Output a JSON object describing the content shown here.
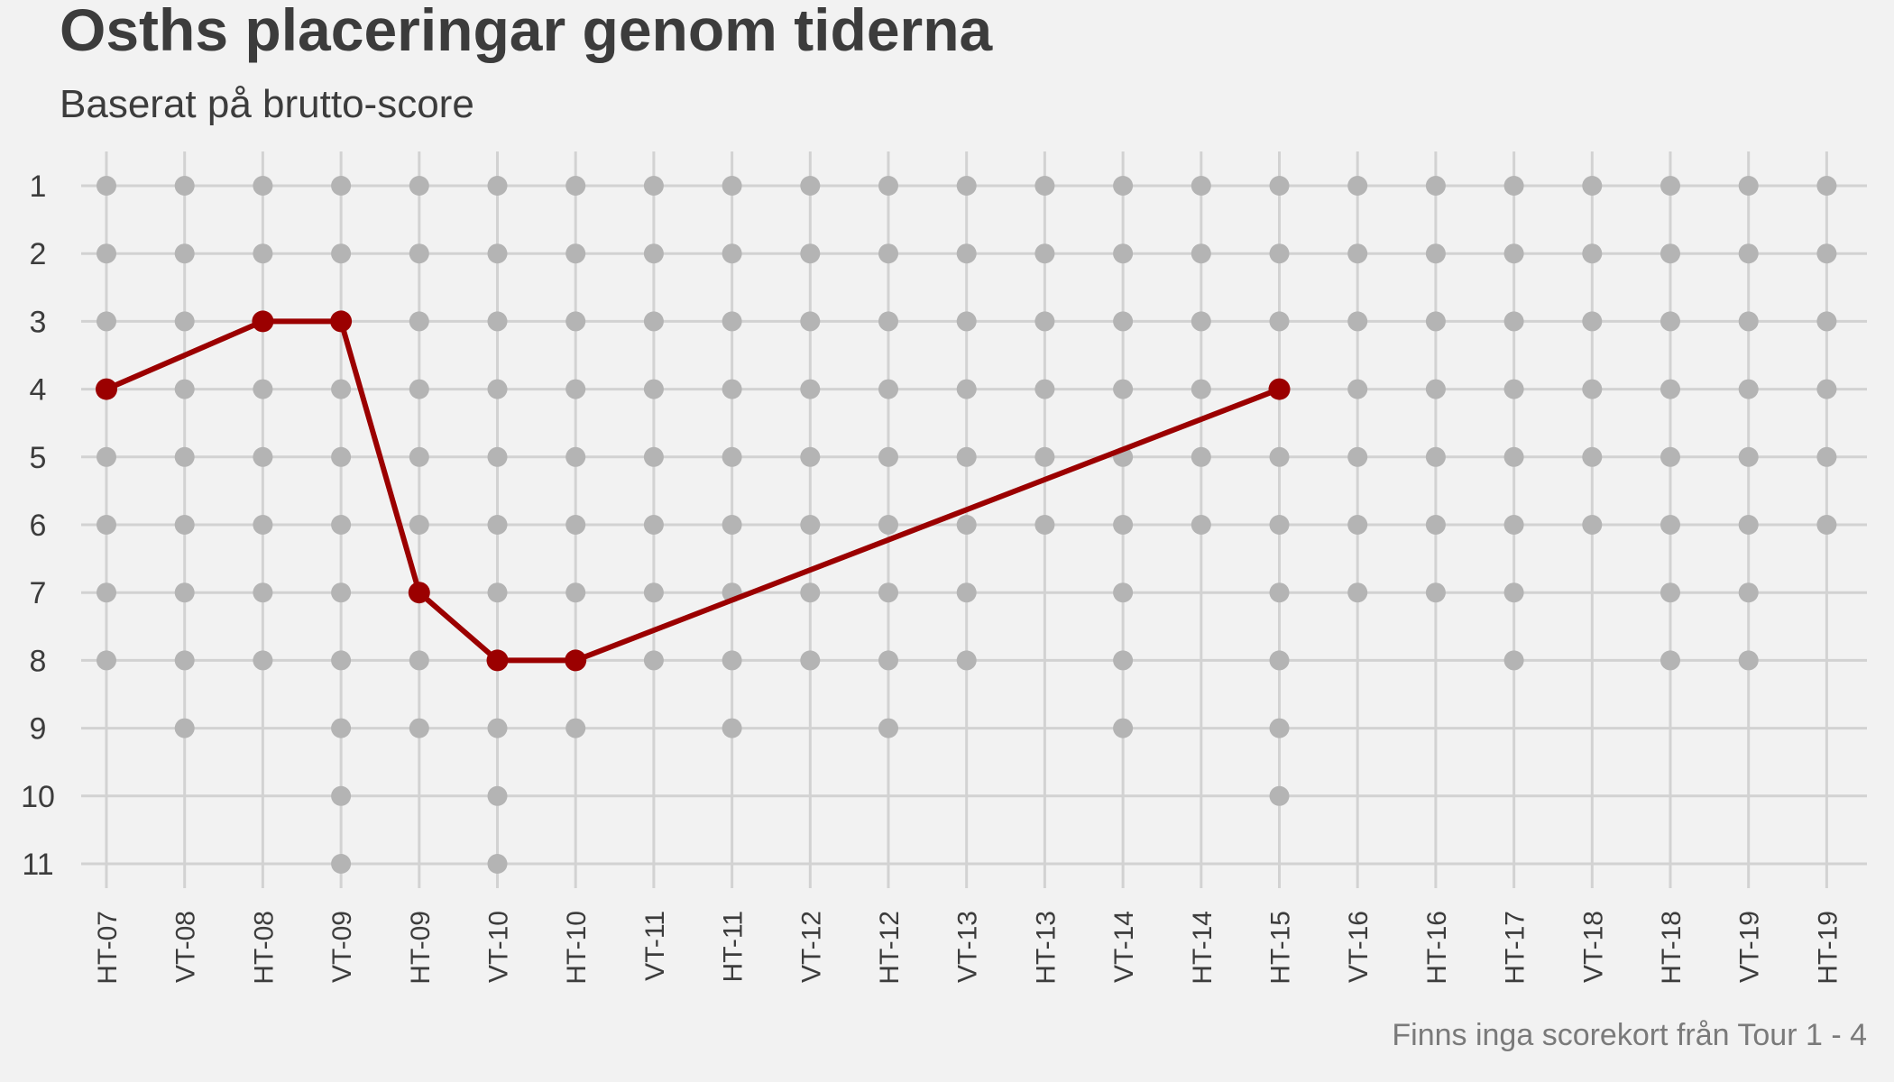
{
  "chart_data": {
    "type": "line",
    "title": "Osths placeringar genom tiderna",
    "subtitle": "Baserat på brutto-score",
    "caption": "Finns inga scorekort från Tour 1 - 4",
    "xlabel": "",
    "ylabel": "",
    "y_reversed": true,
    "ylim": [
      1,
      11
    ],
    "yticks": [
      1,
      2,
      3,
      4,
      5,
      6,
      7,
      8,
      9,
      10,
      11
    ],
    "grid": true,
    "legend": "none",
    "categories": [
      "HT-07",
      "VT-08",
      "HT-08",
      "VT-09",
      "HT-09",
      "VT-10",
      "HT-10",
      "VT-11",
      "HT-11",
      "VT-12",
      "HT-12",
      "VT-13",
      "HT-13",
      "VT-14",
      "HT-14",
      "HT-15",
      "VT-16",
      "HT-16",
      "HT-17",
      "VT-18",
      "HT-18",
      "VT-19",
      "HT-19"
    ],
    "field_sizes": [
      8,
      9,
      8,
      11,
      9,
      11,
      9,
      8,
      9,
      8,
      9,
      8,
      6,
      9,
      6,
      10,
      7,
      7,
      8,
      6,
      8,
      8,
      6
    ],
    "series": [
      {
        "x": [
          "HT-07",
          "HT-08",
          "VT-09",
          "HT-09",
          "VT-10",
          "HT-10",
          "HT-15"
        ],
        "values": [
          4,
          3,
          3,
          7,
          8,
          8,
          4
        ]
      }
    ],
    "colors": {
      "background": "#f2f2f2",
      "grid": "#d2d2d2",
      "field_dot": "#b4b4b4",
      "highlight": "#9b0000",
      "text": "#3c3c3c",
      "caption": "#7a7a7a"
    }
  }
}
